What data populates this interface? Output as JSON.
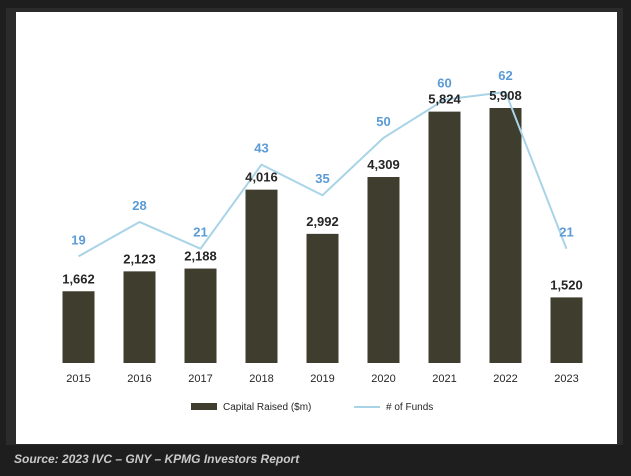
{
  "chart_data": {
    "type": "bar",
    "categories": [
      "2015",
      "2016",
      "2017",
      "2018",
      "2019",
      "2020",
      "2021",
      "2022",
      "2023"
    ],
    "series": [
      {
        "name": "Capital Raised ($m)",
        "type": "bar",
        "values": [
          1662,
          2123,
          2188,
          4016,
          2992,
          4309,
          5824,
          5908,
          1520
        ],
        "labels": [
          "1,662",
          "2,123",
          "2,188",
          "4,016",
          "2,992",
          "4,309",
          "5,824",
          "5,908",
          "1,520"
        ],
        "color": "#3f3d2e",
        "label_color": "#262626"
      },
      {
        "name": "# of Funds",
        "type": "line",
        "values": [
          19,
          28,
          21,
          43,
          35,
          50,
          60,
          62,
          21
        ],
        "labels": [
          "19",
          "28",
          "21",
          "43",
          "35",
          "50",
          "60",
          "62",
          "21"
        ],
        "color": "#a9d4e8",
        "label_color": "#5b9bd5"
      }
    ],
    "title": "",
    "xlabel": "",
    "ylabel": "",
    "legend": "bottom",
    "grid": false
  },
  "source_text": "Source: 2023 IVC – GNY – KPMG Investors Report"
}
